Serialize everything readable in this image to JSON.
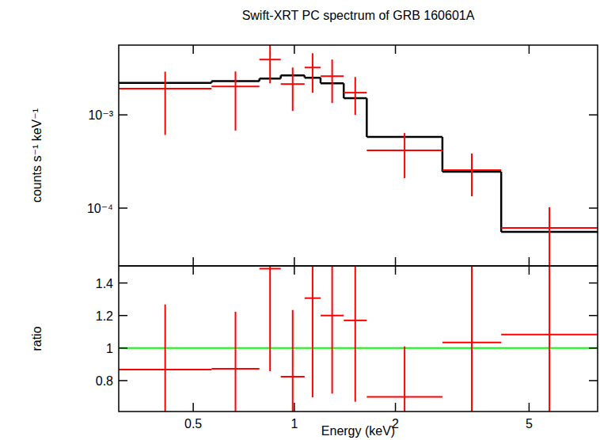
{
  "chart_data": [
    {
      "type": "errorbar",
      "title": "Swift-XRT PC spectrum of GRB 160601A",
      "y_label": "counts s⁻¹ keV⁻¹",
      "log": true,
      "tick_labels": "y",
      "xlim": [
        0.3,
        8
      ],
      "ylim": [
        2.4e-05,
        0.0056
      ],
      "xticks": [
        0.5,
        1,
        2,
        5
      ],
      "yticks": [
        {
          "value": 0.0001,
          "label": "10⁻⁴"
        },
        {
          "value": 0.001,
          "label": "10⁻³"
        }
      ],
      "bins": [
        0.3,
        0.567,
        0.787,
        0.911,
        1.073,
        1.197,
        1.403,
        1.643,
        2.76,
        4.13,
        8
      ],
      "series": [
        {
          "type": "step",
          "color": "#000000",
          "values": [
            0.0022,
            0.0023,
            0.00245,
            0.00265,
            0.0025,
            0.00218,
            0.00151,
            0.00058,
            0.000246,
            5.57e-05
          ]
        },
        {
          "type": "errorbar",
          "color": "#ff0000",
          "values": [
            0.00191,
            0.00202,
            0.00392,
            0.00214,
            0.00322,
            0.0026,
            0.00173,
            0.000416,
            0.000255,
            6.13e-05
          ],
          "errors_minus": [
            0.0013,
            0.00134,
            0.00174,
            0.00104,
            0.00149,
            0.00126,
            0.00073,
            0.000206,
            0.000121,
            4.1e-05
          ],
          "errors_plus": [
            0.001,
            0.0009,
            0.0018,
            0.00108,
            0.00136,
            0.00132,
            0.00082,
            0.000222,
            0.00013,
            4.1e-05
          ]
        }
      ]
    },
    {
      "type": "errorbar",
      "x_label": "Energy (keV)",
      "y_label": "ratio",
      "log": "x",
      "xlim": [
        0.3,
        8
      ],
      "ylim": [
        0.61,
        1.505
      ],
      "xticks": [
        0.5,
        1,
        2,
        5
      ],
      "yticks": [
        0.8,
        1,
        1.2,
        1.4
      ],
      "bins": [
        0.3,
        0.567,
        0.787,
        0.911,
        1.073,
        1.197,
        1.403,
        1.643,
        2.76,
        4.13,
        8
      ],
      "series": [
        {
          "type": "hline",
          "color": "#00ff00",
          "values": [
            1
          ]
        },
        {
          "type": "errorbar",
          "color": "#ff0000",
          "values": [
            0.868,
            0.873,
            1.488,
            0.824,
            1.307,
            1.2,
            1.17,
            0.7,
            1.034,
            1.083
          ],
          "errors": [
            0.4,
            0.35,
            0.63,
            0.41,
            0.61,
            0.48,
            0.5,
            0.31,
            0.6,
            0.7
          ]
        }
      ]
    }
  ]
}
